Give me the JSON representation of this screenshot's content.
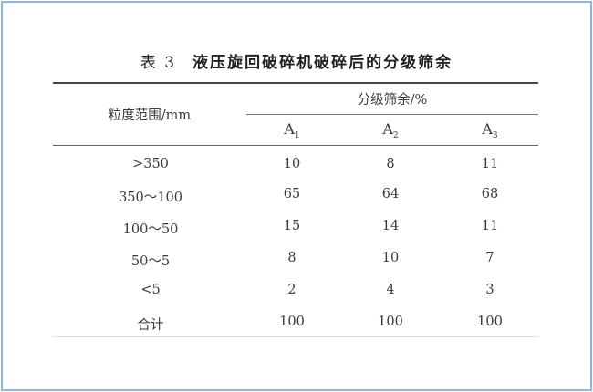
{
  "table": {
    "label": "表 3",
    "title": "液压旋回破碎机破碎后的分级筛余",
    "row_header": "粒度范围/mm",
    "group_header": "分级筛余/%",
    "columns": [
      {
        "base": "A",
        "sub": "1"
      },
      {
        "base": "A",
        "sub": "2"
      },
      {
        "base": "A",
        "sub": "3"
      }
    ],
    "rows": [
      {
        "range": ">350",
        "values": [
          "10",
          "8",
          "11"
        ]
      },
      {
        "range": "350～100",
        "values": [
          "65",
          "64",
          "68"
        ]
      },
      {
        "range": "100～50",
        "values": [
          "15",
          "14",
          "11"
        ]
      },
      {
        "range": "50～5",
        "values": [
          "8",
          "10",
          "7"
        ]
      },
      {
        "range": "<5",
        "values": [
          "2",
          "4",
          "3"
        ]
      },
      {
        "range": "合计",
        "values": [
          "100",
          "100",
          "100"
        ]
      }
    ]
  },
  "colors": {
    "frame": "#8fb3e0",
    "rule": "#444444"
  }
}
